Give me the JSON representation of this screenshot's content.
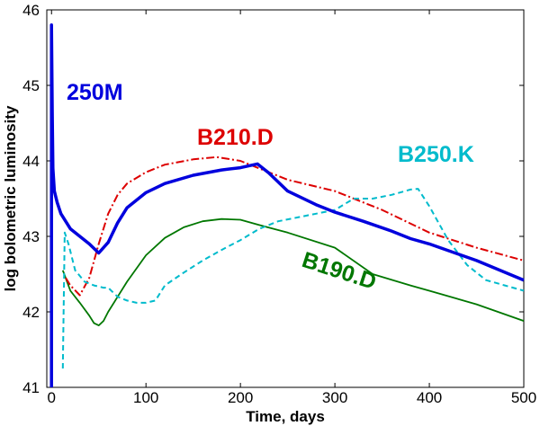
{
  "chart_data": {
    "type": "line",
    "xlabel": "Time, days",
    "ylabel": "log bolometric luminosity",
    "xlim": [
      -5,
      500
    ],
    "ylim": [
      41,
      46
    ],
    "xticks": [
      0,
      100,
      200,
      300,
      400,
      500
    ],
    "yticks": [
      41,
      42,
      43,
      44,
      45,
      46
    ],
    "grid": false,
    "series": [
      {
        "name": "250M",
        "color": "#0000dd",
        "style": "solid",
        "points": [
          [
            0,
            41
          ],
          [
            0,
            45.8
          ],
          [
            0.8,
            44.6
          ],
          [
            1.5,
            43.9
          ],
          [
            3,
            43.6
          ],
          [
            6,
            43.45
          ],
          [
            10,
            43.3
          ],
          [
            20,
            43.1
          ],
          [
            30,
            43
          ],
          [
            40,
            42.9
          ],
          [
            50,
            42.78
          ],
          [
            60,
            42.92
          ],
          [
            70,
            43.18
          ],
          [
            80,
            43.38
          ],
          [
            100,
            43.58
          ],
          [
            120,
            43.7
          ],
          [
            150,
            43.81
          ],
          [
            180,
            43.88
          ],
          [
            200,
            43.91
          ],
          [
            218,
            43.96
          ],
          [
            230,
            43.84
          ],
          [
            250,
            43.6
          ],
          [
            280,
            43.42
          ],
          [
            300,
            43.32
          ],
          [
            330,
            43.2
          ],
          [
            360,
            43.07
          ],
          [
            380,
            42.97
          ],
          [
            400,
            42.9
          ],
          [
            450,
            42.68
          ],
          [
            500,
            42.42
          ]
        ]
      },
      {
        "name": "B210.D",
        "color": "#dd0000",
        "style": "dashdot",
        "points": [
          [
            15,
            42.45
          ],
          [
            20,
            42.35
          ],
          [
            30,
            42.22
          ],
          [
            40,
            42.45
          ],
          [
            50,
            42.9
          ],
          [
            60,
            43.3
          ],
          [
            70,
            43.55
          ],
          [
            80,
            43.7
          ],
          [
            100,
            43.85
          ],
          [
            120,
            43.95
          ],
          [
            150,
            44.02
          ],
          [
            175,
            44.05
          ],
          [
            200,
            44
          ],
          [
            220,
            43.9
          ],
          [
            250,
            43.75
          ],
          [
            300,
            43.6
          ],
          [
            350,
            43.35
          ],
          [
            400,
            43.05
          ],
          [
            450,
            42.85
          ],
          [
            500,
            42.68
          ]
        ]
      },
      {
        "name": "B250.K",
        "color": "#00bbcc",
        "style": "dashed",
        "points": [
          [
            12,
            41.25
          ],
          [
            14,
            43.05
          ],
          [
            18,
            42.9
          ],
          [
            25,
            42.55
          ],
          [
            35,
            42.4
          ],
          [
            45,
            42.35
          ],
          [
            55,
            42.32
          ],
          [
            60,
            42.32
          ],
          [
            70,
            42.2
          ],
          [
            80,
            42.15
          ],
          [
            90,
            42.12
          ],
          [
            100,
            42.12
          ],
          [
            110,
            42.15
          ],
          [
            120,
            42.35
          ],
          [
            140,
            42.52
          ],
          [
            160,
            42.68
          ],
          [
            180,
            42.82
          ],
          [
            200,
            42.95
          ],
          [
            220,
            43.1
          ],
          [
            240,
            43.2
          ],
          [
            260,
            43.25
          ],
          [
            280,
            43.3
          ],
          [
            300,
            43.35
          ],
          [
            320,
            43.5
          ],
          [
            340,
            43.5
          ],
          [
            360,
            43.55
          ],
          [
            380,
            43.62
          ],
          [
            388,
            43.63
          ],
          [
            400,
            43.4
          ],
          [
            420,
            42.95
          ],
          [
            440,
            42.62
          ],
          [
            460,
            42.42
          ],
          [
            480,
            42.35
          ],
          [
            500,
            42.28
          ]
        ]
      },
      {
        "name": "B190.D",
        "color": "#007700",
        "style": "solid",
        "points": [
          [
            12,
            42.55
          ],
          [
            20,
            42.28
          ],
          [
            30,
            42.12
          ],
          [
            40,
            41.95
          ],
          [
            45,
            41.85
          ],
          [
            50,
            41.82
          ],
          [
            55,
            41.88
          ],
          [
            60,
            42
          ],
          [
            70,
            42.2
          ],
          [
            80,
            42.4
          ],
          [
            100,
            42.75
          ],
          [
            120,
            42.98
          ],
          [
            140,
            43.12
          ],
          [
            160,
            43.2
          ],
          [
            180,
            43.23
          ],
          [
            200,
            43.22
          ],
          [
            220,
            43.15
          ],
          [
            250,
            43.05
          ],
          [
            300,
            42.85
          ],
          [
            340,
            42.5
          ],
          [
            380,
            42.35
          ],
          [
            400,
            42.28
          ],
          [
            450,
            42.1
          ],
          [
            500,
            41.88
          ]
        ]
      }
    ]
  }
}
